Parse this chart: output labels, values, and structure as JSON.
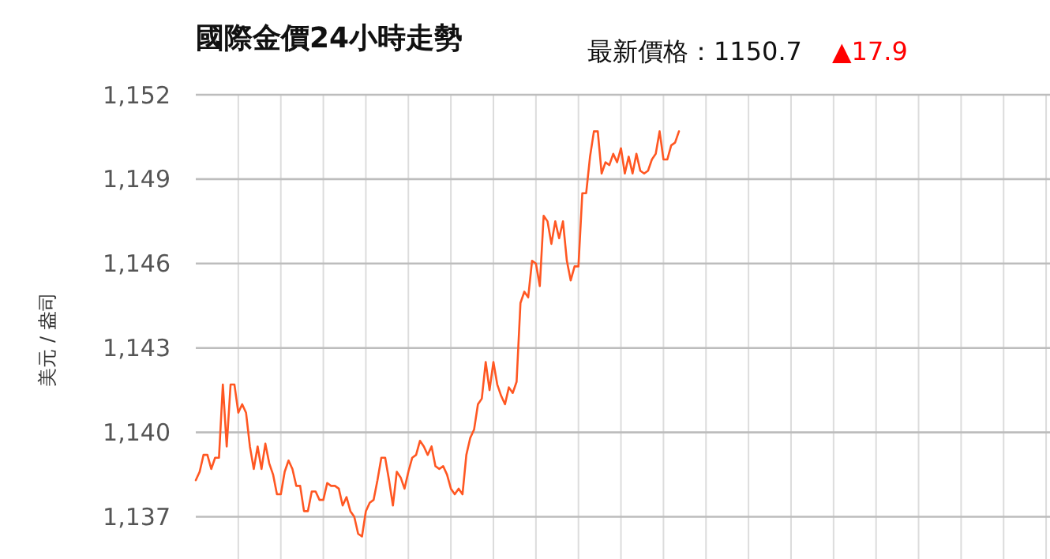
{
  "chart_data": {
    "type": "line",
    "title": "國際金價24小時走勢",
    "subtitle": "最新價格：1150.7",
    "annotations": [
      "▲17.9"
    ],
    "ylabel": "美元 / 盎司",
    "categories": [
      null,
      null,
      null,
      null,
      null,
      null,
      null,
      null,
      null,
      null,
      null,
      null,
      null,
      null,
      null,
      null,
      null,
      null,
      null,
      null,
      null,
      null,
      null,
      null,
      null,
      null,
      null,
      null,
      null,
      null,
      null,
      null,
      null,
      null,
      null,
      null,
      null,
      null,
      null,
      null,
      null,
      null,
      null,
      null,
      null,
      null,
      null,
      null,
      null,
      null,
      null,
      null,
      null,
      null,
      null,
      null,
      null,
      null,
      null,
      null,
      null,
      null,
      null,
      null,
      null,
      null,
      null,
      null,
      null,
      null,
      null,
      null,
      null,
      null,
      null,
      null,
      null,
      null,
      null,
      null,
      null,
      null,
      null,
      null,
      null,
      null,
      null,
      null,
      null,
      null,
      null,
      null,
      null,
      null,
      null,
      null,
      null,
      null,
      null,
      null,
      null,
      null,
      null,
      null,
      null,
      null,
      null,
      null,
      null,
      null,
      null,
      null,
      null,
      null,
      null,
      null,
      null,
      null,
      null,
      null,
      null,
      null,
      null,
      null,
      null,
      null,
      null,
      null,
      null,
      null,
      null,
      null,
      null,
      null,
      null,
      null,
      null,
      null,
      null,
      null,
      null,
      null,
      null,
      null,
      null,
      null,
      null,
      null,
      null,
      null,
      null,
      null,
      null,
      null,
      null,
      null,
      null,
      null,
      null,
      null,
      null,
      null,
      null,
      null,
      null,
      null,
      null,
      null,
      null,
      null,
      null,
      null,
      null,
      null,
      null,
      null,
      null,
      null,
      null,
      null,
      null,
      null,
      null,
      null,
      null,
      null,
      null,
      null,
      null,
      null,
      null,
      null,
      null,
      null,
      null,
      null,
      null,
      null,
      null,
      null,
      null,
      null,
      null,
      null,
      null,
      null,
      null,
      null,
      null,
      null,
      null,
      null,
      null,
      null,
      null,
      null,
      null,
      null,
      null,
      null,
      null,
      null
    ],
    "ylim": [
      1135.5,
      1152
    ],
    "yticks": [
      {
        "value": 1137,
        "label": "1,137"
      },
      {
        "value": 1140,
        "label": "1,140"
      },
      {
        "value": 1143,
        "label": "1,143"
      },
      {
        "value": 1146,
        "label": "1,146"
      },
      {
        "value": 1149,
        "label": "1,149"
      },
      {
        "value": 1152,
        "label": "1,152"
      }
    ],
    "tick_labels": "y",
    "grid": true,
    "marker": "none",
    "line_style": "solid",
    "series": [
      {
        "color": "#ff5722",
        "values": [
          1138.3,
          1138.6,
          1139.2,
          1139.2,
          1138.7,
          1139.1,
          1139.1,
          1141.7,
          1139.5,
          1141.7,
          1141.7,
          1140.7,
          1141.0,
          1140.7,
          1139.5,
          1138.7,
          1139.5,
          1138.7,
          1139.6,
          1138.9,
          1138.5,
          1137.8,
          1137.8,
          1138.6,
          1139.0,
          1138.7,
          1138.1,
          1138.1,
          1137.2,
          1137.2,
          1137.9,
          1137.9,
          1137.6,
          1137.6,
          1138.2,
          1138.1,
          1138.1,
          1138.0,
          1137.4,
          1137.7,
          1137.2,
          1137.0,
          1136.4,
          1136.3,
          1137.2,
          1137.5,
          1137.6,
          1138.3,
          1139.1,
          1139.1,
          1138.3,
          1137.4,
          1138.6,
          1138.4,
          1138.0,
          1138.6,
          1139.1,
          1139.2,
          1139.7,
          1139.5,
          1139.2,
          1139.5,
          1138.8,
          1138.7,
          1138.8,
          1138.5,
          1138.0,
          1137.8,
          1138.0,
          1137.8,
          1139.2,
          1139.8,
          1140.1,
          1141.0,
          1141.2,
          1142.5,
          1141.5,
          1142.5,
          1141.7,
          1141.3,
          1141.0,
          1141.6,
          1141.4,
          1141.8,
          1144.6,
          1145.0,
          1144.8,
          1146.1,
          1146.0,
          1145.2,
          1147.7,
          1147.5,
          1146.7,
          1147.5,
          1146.9,
          1147.5,
          1146.1,
          1145.4,
          1145.9,
          1145.9,
          1148.5,
          1148.5,
          1149.8,
          1150.7,
          1150.7,
          1149.2,
          1149.6,
          1149.5,
          1149.9,
          1149.6,
          1150.1,
          1149.2,
          1149.8,
          1149.2,
          1149.9,
          1149.3,
          1149.2,
          1149.3,
          1149.7,
          1149.9,
          1150.7,
          1149.7,
          1149.7,
          1150.2,
          1150.3,
          1150.7,
          null,
          null,
          null,
          null,
          null,
          null,
          null,
          null,
          null,
          null,
          null,
          null,
          null,
          null,
          null,
          null,
          null,
          null,
          null,
          null,
          null,
          null,
          null,
          null,
          null,
          null,
          null,
          null,
          null,
          null,
          null,
          null,
          null,
          null,
          null,
          null,
          null,
          null,
          null,
          null,
          null,
          null,
          null,
          null,
          null,
          null,
          null,
          null,
          null,
          null,
          null,
          null,
          null,
          null,
          null,
          null,
          null,
          null,
          null,
          null,
          null,
          null,
          null,
          null,
          null,
          null,
          null,
          null,
          null,
          null,
          null,
          null,
          null,
          null,
          null,
          null,
          null,
          null,
          null,
          null,
          null,
          null,
          null,
          null,
          null,
          null,
          null,
          null,
          null,
          null,
          null,
          null,
          null,
          null,
          null,
          null
        ]
      }
    ]
  }
}
